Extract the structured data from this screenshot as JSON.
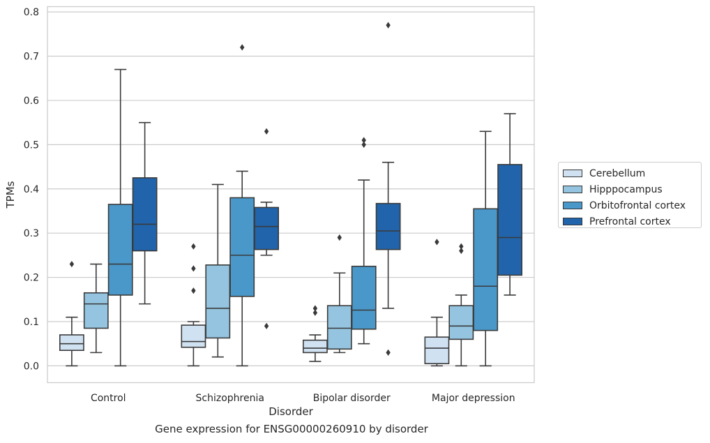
{
  "chart_data": {
    "type": "box",
    "title": "",
    "caption": "Gene expression for ENSG00000260910 by disorder",
    "xlabel": "Disorder",
    "ylabel": "TPMs",
    "ylim": [
      -0.038,
      0.812
    ],
    "yticks": [
      "0.0",
      "0.1",
      "0.2",
      "0.3",
      "0.4",
      "0.5",
      "0.6",
      "0.7",
      "0.8"
    ],
    "grid": "horizontal",
    "legend_position": "right",
    "categories": [
      "Control",
      "Schizophrenia",
      "Bipolar disorder",
      "Major depression"
    ],
    "series": [
      {
        "name": "Cerebellum",
        "color": "#d0e1f2",
        "boxes": [
          {
            "whisker_low": 0.0,
            "q1": 0.035,
            "median": 0.05,
            "q3": 0.07,
            "whisker_high": 0.11,
            "outliers": [
              0.23
            ]
          },
          {
            "whisker_low": 0.0,
            "q1": 0.042,
            "median": 0.055,
            "q3": 0.092,
            "whisker_high": 0.1,
            "outliers": [
              0.27,
              0.22,
              0.17
            ]
          },
          {
            "whisker_low": 0.01,
            "q1": 0.03,
            "median": 0.04,
            "q3": 0.058,
            "whisker_high": 0.07,
            "outliers": [
              0.13,
              0.12
            ]
          },
          {
            "whisker_low": 0.0,
            "q1": 0.005,
            "median": 0.04,
            "q3": 0.065,
            "whisker_high": 0.11,
            "outliers": [
              0.28
            ]
          }
        ]
      },
      {
        "name": "Hipppocampus",
        "color": "#94c4df",
        "boxes": [
          {
            "whisker_low": 0.03,
            "q1": 0.085,
            "median": 0.14,
            "q3": 0.165,
            "whisker_high": 0.23,
            "outliers": []
          },
          {
            "whisker_low": 0.02,
            "q1": 0.063,
            "median": 0.13,
            "q3": 0.228,
            "whisker_high": 0.41,
            "outliers": []
          },
          {
            "whisker_low": 0.03,
            "q1": 0.038,
            "median": 0.085,
            "q3": 0.136,
            "whisker_high": 0.21,
            "outliers": [
              0.29
            ]
          },
          {
            "whisker_low": 0.0,
            "q1": 0.06,
            "median": 0.09,
            "q3": 0.136,
            "whisker_high": 0.16,
            "outliers": [
              0.27,
              0.26
            ]
          }
        ]
      },
      {
        "name": "Orbitofrontal cortex",
        "color": "#4a98c9",
        "boxes": [
          {
            "whisker_low": 0.0,
            "q1": 0.16,
            "median": 0.23,
            "q3": 0.365,
            "whisker_high": 0.67,
            "outliers": []
          },
          {
            "whisker_low": 0.0,
            "q1": 0.157,
            "median": 0.25,
            "q3": 0.38,
            "whisker_high": 0.44,
            "outliers": [
              0.72
            ]
          },
          {
            "whisker_low": 0.05,
            "q1": 0.083,
            "median": 0.126,
            "q3": 0.225,
            "whisker_high": 0.42,
            "outliers": [
              0.51,
              0.5
            ]
          },
          {
            "whisker_low": 0.0,
            "q1": 0.08,
            "median": 0.18,
            "q3": 0.355,
            "whisker_high": 0.53,
            "outliers": []
          }
        ]
      },
      {
        "name": "Prefrontal cortex",
        "color": "#2164ab",
        "boxes": [
          {
            "whisker_low": 0.14,
            "q1": 0.26,
            "median": 0.32,
            "q3": 0.425,
            "whisker_high": 0.55,
            "outliers": []
          },
          {
            "whisker_low": 0.25,
            "q1": 0.263,
            "median": 0.315,
            "q3": 0.358,
            "whisker_high": 0.37,
            "outliers": [
              0.53,
              0.09
            ]
          },
          {
            "whisker_low": 0.13,
            "q1": 0.263,
            "median": 0.305,
            "q3": 0.367,
            "whisker_high": 0.46,
            "outliers": [
              0.77,
              0.03
            ]
          },
          {
            "whisker_low": 0.16,
            "q1": 0.205,
            "median": 0.29,
            "q3": 0.455,
            "whisker_high": 0.57,
            "outliers": []
          }
        ]
      }
    ]
  }
}
